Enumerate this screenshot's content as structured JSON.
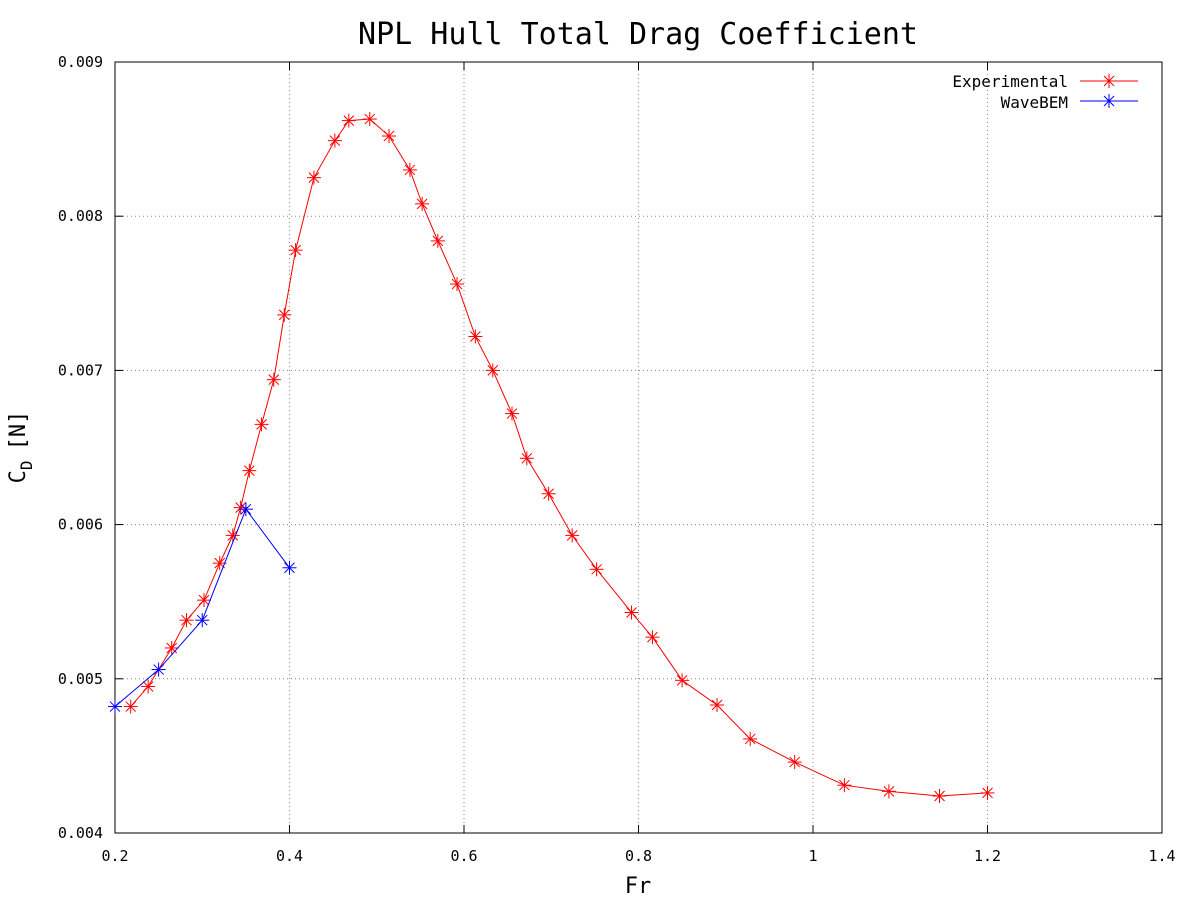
{
  "chart_data": {
    "type": "line",
    "title": "NPL Hull Total Drag Coefficient",
    "xlabel": "Fr",
    "ylabel_main": "C",
    "ylabel_sub": "D",
    "ylabel_unit": "[N]",
    "xlim": [
      0.2,
      1.4
    ],
    "ylim": [
      0.004,
      0.009
    ],
    "x_ticks": [
      0.2,
      0.4,
      0.6,
      0.8,
      1.0,
      1.2,
      1.4
    ],
    "x_tick_labels": [
      "0.2",
      "0.4",
      "0.6",
      "0.8",
      "1",
      "1.2",
      "1.4"
    ],
    "y_ticks": [
      0.004,
      0.005,
      0.006,
      0.007,
      0.008,
      0.009
    ],
    "y_tick_labels": [
      "0.004",
      "0.005",
      "0.006",
      "0.007",
      "0.008",
      "0.009"
    ],
    "grid": true,
    "legend_position": "top-right",
    "series": [
      {
        "name": "Experimental",
        "color": "#ff0000",
        "marker": "asterisk",
        "points": [
          [
            0.218,
            0.00482
          ],
          [
            0.238,
            0.00495
          ],
          [
            0.265,
            0.0052
          ],
          [
            0.282,
            0.00538
          ],
          [
            0.302,
            0.00551
          ],
          [
            0.32,
            0.00575
          ],
          [
            0.335,
            0.00593
          ],
          [
            0.344,
            0.00611
          ],
          [
            0.354,
            0.00635
          ],
          [
            0.368,
            0.00665
          ],
          [
            0.382,
            0.00694
          ],
          [
            0.394,
            0.00736
          ],
          [
            0.407,
            0.00778
          ],
          [
            0.428,
            0.00825
          ],
          [
            0.452,
            0.00849
          ],
          [
            0.468,
            0.00862
          ],
          [
            0.492,
            0.00863
          ],
          [
            0.514,
            0.00852
          ],
          [
            0.538,
            0.0083
          ],
          [
            0.552,
            0.00808
          ],
          [
            0.57,
            0.00784
          ],
          [
            0.592,
            0.00756
          ],
          [
            0.613,
            0.00722
          ],
          [
            0.633,
            0.007
          ],
          [
            0.655,
            0.00672
          ],
          [
            0.672,
            0.00643
          ],
          [
            0.697,
            0.0062
          ],
          [
            0.724,
            0.00593
          ],
          [
            0.752,
            0.00571
          ],
          [
            0.792,
            0.00543
          ],
          [
            0.816,
            0.00527
          ],
          [
            0.85,
            0.00499
          ],
          [
            0.89,
            0.00483
          ],
          [
            0.928,
            0.00461
          ],
          [
            0.979,
            0.00446
          ],
          [
            1.036,
            0.00431
          ],
          [
            1.087,
            0.00427
          ],
          [
            1.145,
            0.00424
          ],
          [
            1.2,
            0.00426
          ]
        ]
      },
      {
        "name": "WaveBEM",
        "color": "#0000ff",
        "marker": "asterisk",
        "points": [
          [
            0.2,
            0.00482
          ],
          [
            0.25,
            0.00506
          ],
          [
            0.3,
            0.00538
          ],
          [
            0.35,
            0.0061
          ],
          [
            0.4,
            0.00572
          ]
        ]
      }
    ]
  }
}
